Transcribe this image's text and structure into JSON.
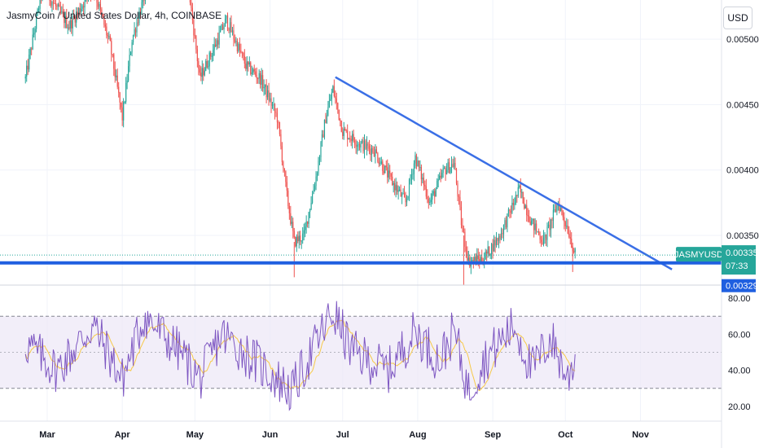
{
  "header": {
    "title": "JasmyCoin / United States Dollar, 4h, COINBASE",
    "currency_label": "USD"
  },
  "colors": {
    "up": "#26a69a",
    "down": "#ef5350",
    "trendline": "#3a6fe6",
    "support": "#1f5fe0",
    "rsi": "#7e57c2",
    "rsi_ma": "#f7c948",
    "rsi_band": "#ede7f6",
    "price_tag": "#26a69a",
    "support_tag": "#1f5fe0"
  },
  "chart_data": [
    {
      "type": "candlestick",
      "symbol": "JASMYUSD",
      "y_range": [
        0.00312,
        0.0053
      ],
      "y_ticks": [
        "0.00500",
        "0.00450",
        "0.00400",
        "0.00350"
      ],
      "x_ticks": [
        "Mar",
        "Apr",
        "May",
        "Jun",
        "Jul",
        "Aug",
        "Sep",
        "Oct",
        "Nov"
      ],
      "anchors": [
        {
          "date": "Feb 20",
          "price": 0.0047
        },
        {
          "date": "Feb 27",
          "price": 0.0054
        },
        {
          "date": "Mar 10",
          "price": 0.0051
        },
        {
          "date": "Mar 20",
          "price": 0.0054
        },
        {
          "date": "Mar 27",
          "price": 0.00495
        },
        {
          "date": "Apr 1",
          "price": 0.0044
        },
        {
          "date": "Apr 5",
          "price": 0.005
        },
        {
          "date": "Apr 12",
          "price": 0.00545
        },
        {
          "date": "Apr 28",
          "price": 0.00545
        },
        {
          "date": "May 3",
          "price": 0.0047
        },
        {
          "date": "May 8",
          "price": 0.0049
        },
        {
          "date": "May 14",
          "price": 0.00515
        },
        {
          "date": "May 22",
          "price": 0.0048
        },
        {
          "date": "May 28",
          "price": 0.0047
        },
        {
          "date": "Jun 4",
          "price": 0.0044
        },
        {
          "date": "Jun 8",
          "price": 0.0038
        },
        {
          "date": "Jun 11",
          "price": 0.00345
        },
        {
          "date": "Jun 15",
          "price": 0.0035
        },
        {
          "date": "Jun 20",
          "price": 0.00395
        },
        {
          "date": "Jun 24",
          "price": 0.0044
        },
        {
          "date": "Jun 27",
          "price": 0.00462
        },
        {
          "date": "Jul 1",
          "price": 0.0043
        },
        {
          "date": "Jul 8",
          "price": 0.0042
        },
        {
          "date": "Jul 14",
          "price": 0.00415
        },
        {
          "date": "Jul 20",
          "price": 0.00395
        },
        {
          "date": "Jul 27",
          "price": 0.00375
        },
        {
          "date": "Jul 31",
          "price": 0.0041
        },
        {
          "date": "Aug 6",
          "price": 0.00375
        },
        {
          "date": "Aug 12",
          "price": 0.004
        },
        {
          "date": "Aug 16",
          "price": 0.00405
        },
        {
          "date": "Aug 19",
          "price": 0.0036
        },
        {
          "date": "Aug 22",
          "price": 0.0033
        },
        {
          "date": "Aug 28",
          "price": 0.00332
        },
        {
          "date": "Sep 4",
          "price": 0.0035
        },
        {
          "date": "Sep 12",
          "price": 0.00385
        },
        {
          "date": "Sep 17",
          "price": 0.0036
        },
        {
          "date": "Sep 22",
          "price": 0.00345
        },
        {
          "date": "Sep 28",
          "price": 0.00375
        },
        {
          "date": "Oct 2",
          "price": 0.00355
        },
        {
          "date": "Oct 5",
          "price": 0.00335
        }
      ],
      "trendline": [
        {
          "date": "Jun 28",
          "price": 0.00471
        },
        {
          "date": "Nov 14",
          "price": 0.00324
        }
      ],
      "support_line": 0.00329,
      "current_price_line": 0.00335,
      "labels": {
        "symbol_tag": "JASMYUSD",
        "price_tag": "0.00335",
        "countdown": "07:33",
        "support_tag": "0.00329"
      }
    },
    {
      "type": "line",
      "indicator": "RSI",
      "y_range": [
        15,
        85
      ],
      "y_ticks": [
        "80.00",
        "60.00",
        "40.00",
        "20.00"
      ],
      "bands": [
        30,
        50,
        70
      ],
      "anchors": [
        {
          "date": "Feb 20",
          "value": 55
        },
        {
          "date": "Mar 5",
          "value": 40
        },
        {
          "date": "Mar 20",
          "value": 65
        },
        {
          "date": "Apr 1",
          "value": 35
        },
        {
          "date": "Apr 10",
          "value": 70
        },
        {
          "date": "Apr 25",
          "value": 50
        },
        {
          "date": "May 3",
          "value": 35
        },
        {
          "date": "May 12",
          "value": 60
        },
        {
          "date": "May 26",
          "value": 45
        },
        {
          "date": "Jun 10",
          "value": 28
        },
        {
          "date": "Jun 20",
          "value": 55
        },
        {
          "date": "Jun 27",
          "value": 72
        },
        {
          "date": "Jul 5",
          "value": 50
        },
        {
          "date": "Jul 20",
          "value": 40
        },
        {
          "date": "Jul 31",
          "value": 62
        },
        {
          "date": "Aug 10",
          "value": 45
        },
        {
          "date": "Aug 16",
          "value": 62
        },
        {
          "date": "Aug 22",
          "value": 28
        },
        {
          "date": "Aug 28",
          "value": 45
        },
        {
          "date": "Sep 10",
          "value": 65
        },
        {
          "date": "Sep 17",
          "value": 40
        },
        {
          "date": "Sep 25",
          "value": 58
        },
        {
          "date": "Oct 2",
          "value": 35
        },
        {
          "date": "Oct 5",
          "value": 48
        }
      ]
    }
  ]
}
